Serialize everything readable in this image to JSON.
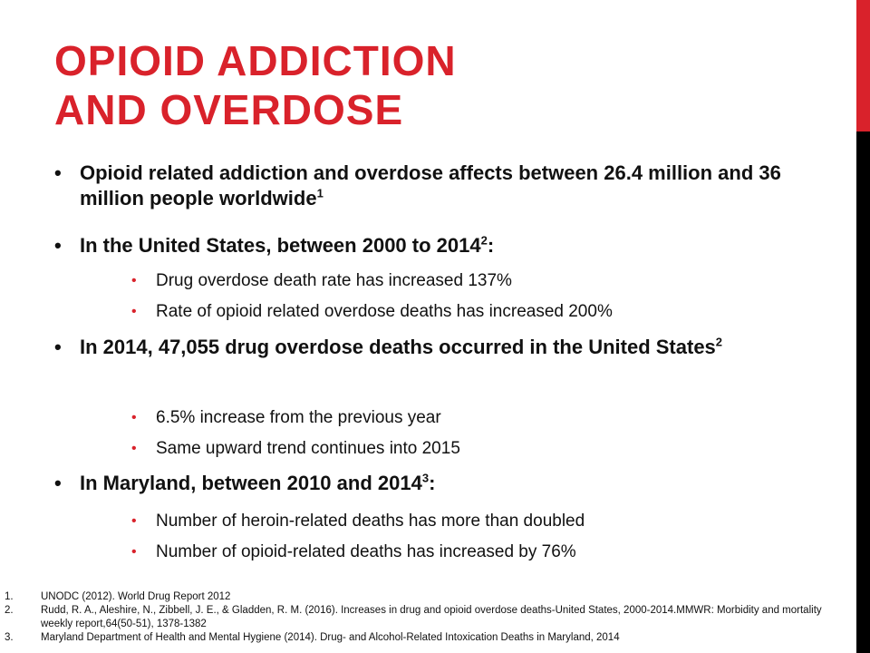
{
  "slide": {
    "title_line1": "OPIOID ADDICTION",
    "title_line2": "AND OVERDOSE",
    "bullets": [
      {
        "text": "Opioid related addiction and overdose affects between 26.4 million and 36 million people worldwide",
        "sup": "1"
      },
      {
        "text": "In the United States, between 2000 to 2014",
        "sup": "2",
        "tail": ":"
      },
      {
        "text": "Drug overdose death rate has increased 137%"
      },
      {
        "text": "Rate of opioid related overdose deaths has increased 200%"
      },
      {
        "text": "In 2014, 47,055 drug overdose deaths occurred in the United States",
        "sup": "2"
      },
      {
        "text": "6.5% increase from the previous year"
      },
      {
        "text": "Same upward trend continues into 2015"
      },
      {
        "text": "In Maryland, between 2010 and 2014",
        "sup": "3",
        "tail": ":"
      },
      {
        "text": "Number of heroin-related deaths has more than doubled"
      },
      {
        "text": "Number of opioid-related deaths has increased by 76%"
      }
    ],
    "references": [
      {
        "num": "1.",
        "text": "UNODC (2012). World Drug Report 2012"
      },
      {
        "num": "2.",
        "text": "Rudd, R. A., Aleshire, N., Zibbell, J. E., & Gladden, R. M. (2016). Increases in drug and opioid overdose deaths-United States, 2000-2014.MMWR: Morbidity and mortality weekly report,64(50-51), 1378-1382"
      },
      {
        "num": "3.",
        "text": "Maryland Department of Health and Mental Hygiene (2014). Drug- and Alcohol-Related Intoxication Deaths in Maryland, 2014"
      }
    ],
    "colors": {
      "accent": "#d9222b",
      "sidebar_bottom": "#000000"
    }
  }
}
